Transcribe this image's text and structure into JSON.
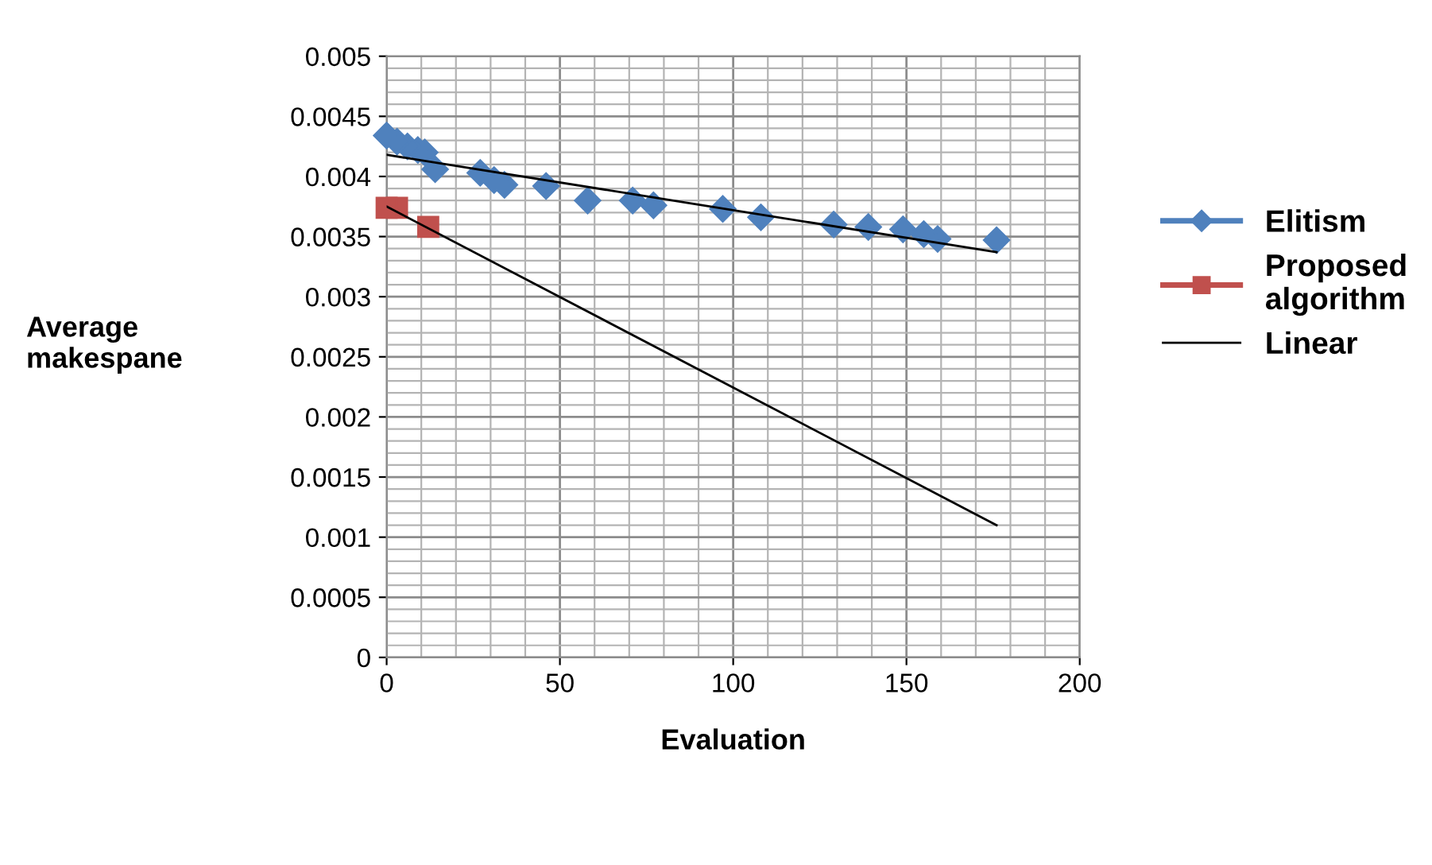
{
  "chart_data": {
    "type": "scatter",
    "xlabel": "Evaluation",
    "ylabel": "Average\nmakespane",
    "xlim": [
      0,
      200
    ],
    "xticks": [
      0,
      50,
      100,
      150,
      200
    ],
    "ylim": [
      0,
      0.005
    ],
    "yticks": [
      0,
      0.0005,
      0.001,
      0.0015,
      0.002,
      0.0025,
      0.003,
      0.0035,
      0.004,
      0.0045,
      0.005
    ],
    "grid": true,
    "legend": "right",
    "series": [
      {
        "name": "Elitism",
        "color": "#4f81bd",
        "marker": "diamond",
        "x": [
          0,
          3,
          6,
          9,
          11,
          14,
          27,
          31,
          34,
          46,
          58,
          71,
          77,
          97,
          108,
          129,
          139,
          149,
          155,
          159,
          176
        ],
        "values": [
          0.00434,
          0.00429,
          0.00425,
          0.00422,
          0.0042,
          0.00406,
          0.00403,
          0.00397,
          0.00393,
          0.00392,
          0.0038,
          0.0038,
          0.00376,
          0.00373,
          0.00366,
          0.0036,
          0.00358,
          0.00356,
          0.00352,
          0.00348,
          0.00347
        ]
      },
      {
        "name": "Proposed\nalgorithm",
        "color": "#c0504d",
        "marker": "square",
        "x": [
          0,
          3,
          12
        ],
        "values": [
          0.00374,
          0.00374,
          0.00358
        ]
      },
      {
        "name": "Linear",
        "type": "line",
        "color": "#000000",
        "marker": "none",
        "x": [
          0,
          176
        ],
        "values": [
          0.00418,
          0.00337
        ]
      },
      {
        "type": "line",
        "color": "#000000",
        "marker": "none",
        "x": [
          0,
          176
        ],
        "values": [
          0.00375,
          0.0011
        ]
      }
    ]
  }
}
